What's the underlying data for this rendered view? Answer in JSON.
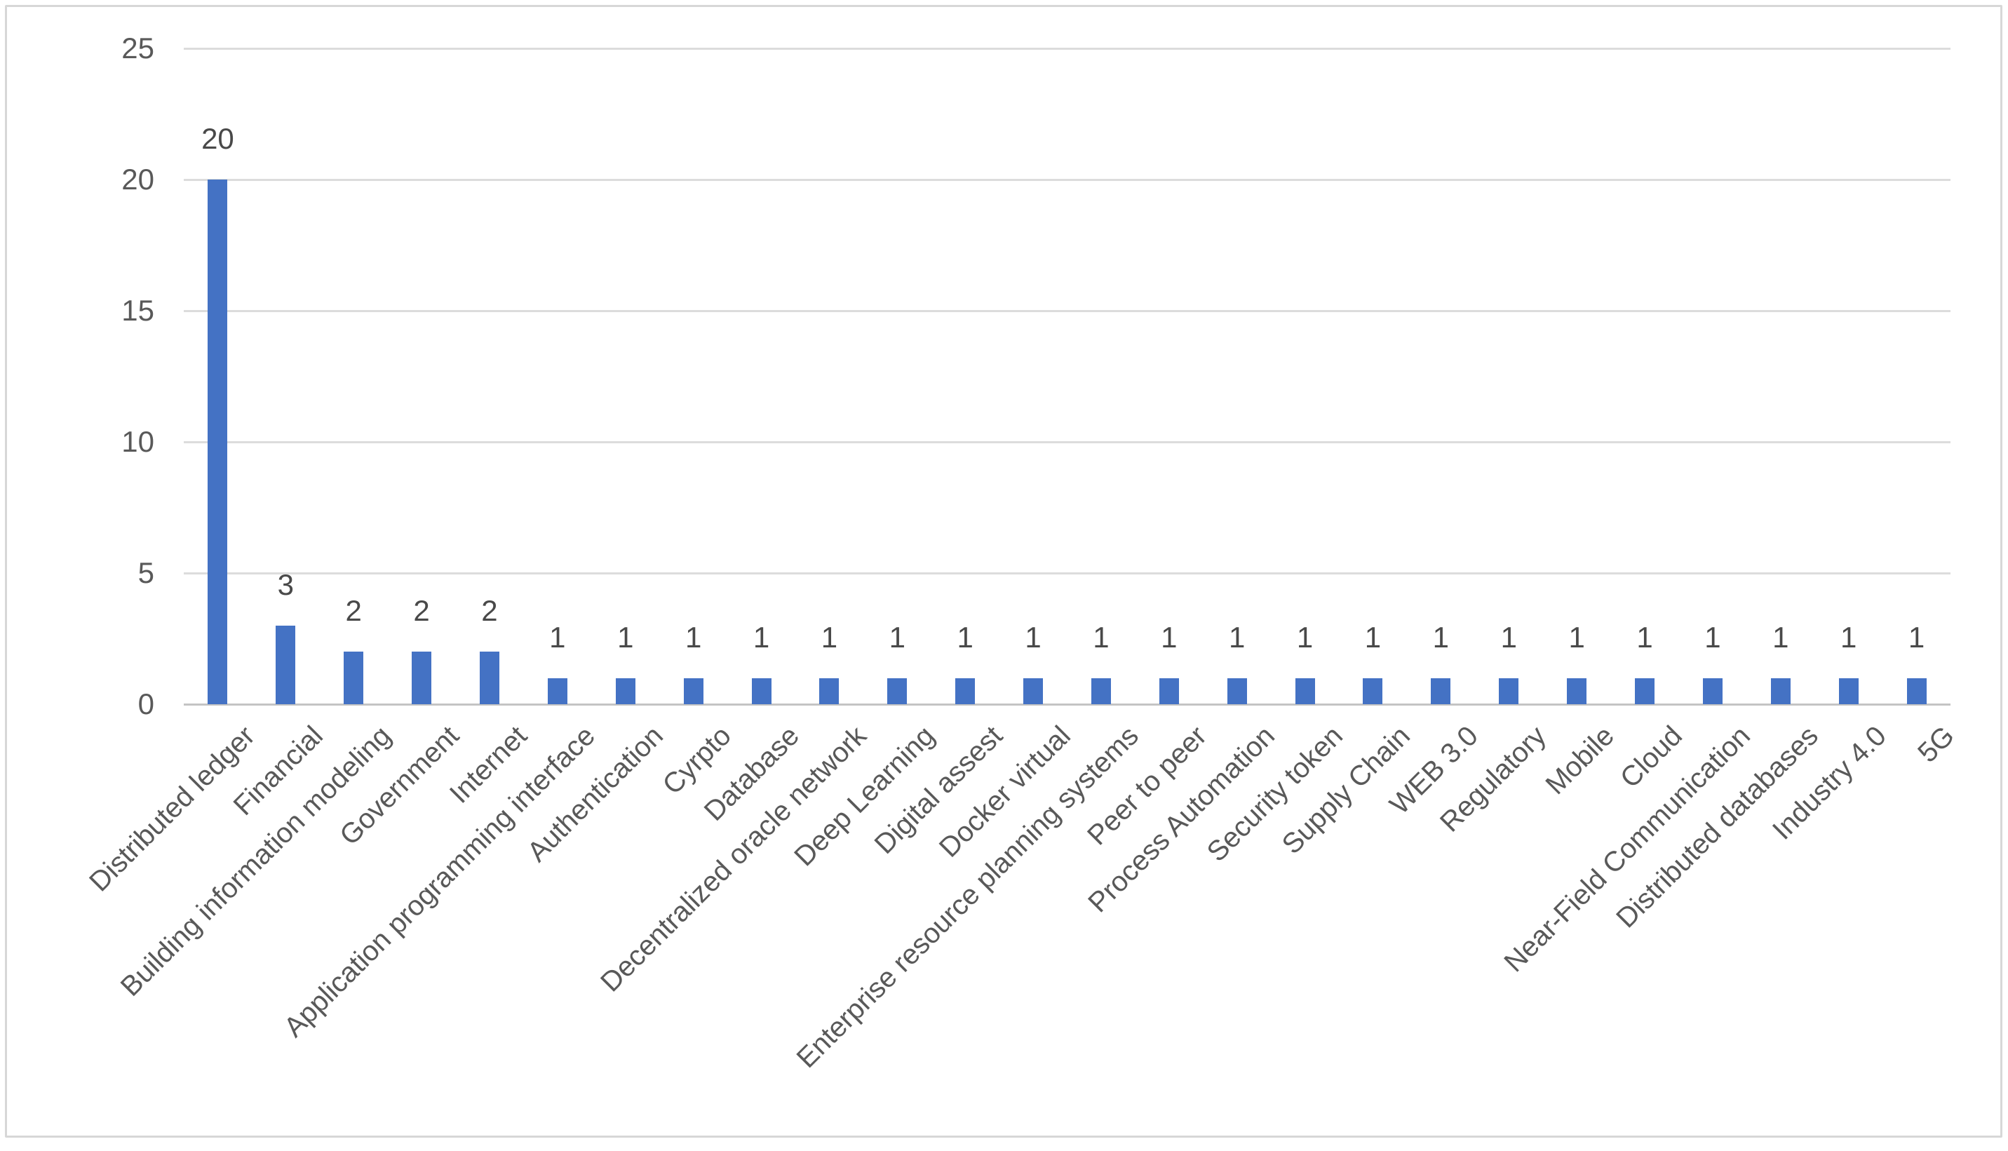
{
  "chart_data": {
    "type": "bar",
    "title": "",
    "xlabel": "",
    "ylabel": "",
    "categories": [
      "Distributed ledger",
      "Financial",
      "Building information modeling",
      "Government",
      "Internet",
      "Application programming interface",
      "Authentication",
      "Cyrpto",
      "Database",
      "Decentralized oracle network",
      "Deep Learning",
      "Digital assest",
      "Docker virtual",
      "Enterprise resource planning systems",
      "Peer to peer",
      "Process Automation",
      "Security token",
      "Supply Chain",
      "WEB 3.0",
      "Regulatory",
      "Mobile",
      "Cloud",
      "Near-Field Communication",
      "Distributed databases",
      "Industry 4.0",
      "5G"
    ],
    "values": [
      20,
      3,
      2,
      2,
      2,
      1,
      1,
      1,
      1,
      1,
      1,
      1,
      1,
      1,
      1,
      1,
      1,
      1,
      1,
      1,
      1,
      1,
      1,
      1,
      1,
      1
    ],
    "ylim": [
      0,
      25
    ],
    "yticks": [
      0,
      5,
      10,
      15,
      20,
      25
    ],
    "grid": true,
    "legend_position": "none",
    "data_labels_visible": true,
    "bar_color": "#4472C4",
    "gridline_color": "#DCDCDC",
    "axis_line_color": "#C4C4C4",
    "axis_text_color": "#595959",
    "data_label_color": "#494949",
    "frame_border_color": "#D7D7D7"
  }
}
